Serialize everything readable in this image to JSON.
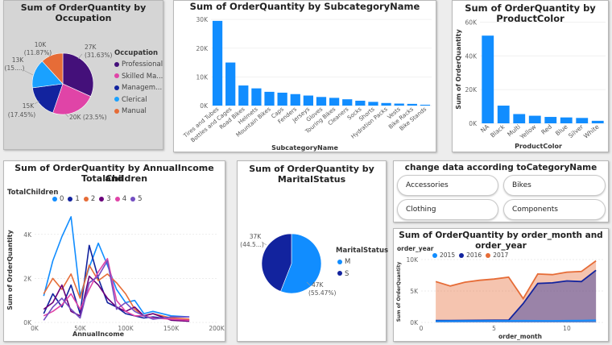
{
  "colors": {
    "bar": "#118dff",
    "professional": "#44107a",
    "skilled": "#e044a7",
    "management": "#12239e",
    "clerical": "#1aa1ff",
    "manual": "#e66c37",
    "marital_m": "#118dff",
    "marital_s": "#12239e",
    "y2015": "#118dff",
    "y2016": "#12239e",
    "y2017": "#e66c37"
  },
  "occupation": {
    "title": "Sum of OrderQuantity by Occupation",
    "legend_title": "Occupation",
    "legend": [
      "Professional",
      "Skilled Ma...",
      "Managem...",
      "Clerical",
      "Manual"
    ],
    "labels": {
      "professional": [
        "27K",
        "(31.63%)"
      ],
      "skilled": [
        "20K (23.5%)",
        ""
      ],
      "management": [
        "15K",
        "(17.45%)"
      ],
      "clerical": [
        "13K",
        "(15....)"
      ],
      "manual": [
        "10K",
        "(11.87%)"
      ]
    }
  },
  "subcategory": {
    "title": "Sum of OrderQuantity by SubcategoryName",
    "xlabel": "SubcategoryName",
    "yticks": [
      "0K",
      "10K",
      "20K",
      "30K"
    ]
  },
  "color": {
    "title": "Sum of OrderQuantity by ProductColor",
    "xlabel": "ProductColor",
    "ylabel": "Sum of OrderQuantity",
    "yticks": [
      "0K",
      "20K",
      "40K",
      "60K"
    ]
  },
  "income": {
    "title_line1": "Sum of OrderQuantity by AnnualIncome and",
    "title_line2": "TotalChildren",
    "legend_title": "TotalChildren",
    "legend": [
      "0",
      "1",
      "2",
      "3",
      "4",
      "5"
    ],
    "xlabel": "AnnualIncome",
    "ylabel": "Sum of OrderQuantity",
    "xticks": [
      "0K",
      "50K",
      "100K",
      "150K",
      "200K"
    ],
    "yticks": [
      "0K",
      "2K",
      "4K"
    ]
  },
  "marital": {
    "title_line1": "Sum of OrderQuantity by",
    "title_line2": "MaritalStatus",
    "legend_title": "MaritalStatus",
    "legend": [
      "M",
      "S"
    ],
    "label_s": [
      "37K",
      "(44.5...)"
    ],
    "label_m": [
      "47K",
      "(55.47%)"
    ]
  },
  "slicer": {
    "title": "change data according toCategoryName",
    "buttons": [
      "Accessories",
      "Bikes",
      "Clothing",
      "Components"
    ]
  },
  "month": {
    "title": "Sum of OrderQuantity by order_month and order_year",
    "legend_title": "order_year",
    "legend": [
      "2015",
      "2016",
      "2017"
    ],
    "xlabel": "order_month",
    "ylabel": "Sum of OrderQuantity",
    "xticks": [
      "0",
      "5",
      "10"
    ],
    "yticks": [
      "0K",
      "5K",
      "10K"
    ]
  },
  "chart_data": [
    {
      "type": "pie",
      "title": "Sum of OrderQuantity by Occupation",
      "categories": [
        "Professional",
        "Skilled Manual",
        "Management",
        "Clerical",
        "Manual"
      ],
      "values": [
        27000,
        20000,
        15000,
        13000,
        10000
      ],
      "percent": [
        31.63,
        23.5,
        17.45,
        15.5,
        11.87
      ]
    },
    {
      "type": "bar",
      "title": "Sum of OrderQuantity by SubcategoryName",
      "xlabel": "SubcategoryName",
      "ylabel": "",
      "ylim": [
        0,
        32000
      ],
      "categories": [
        "Tires and Tubes",
        "Bottles and Cages",
        "Road Bikes",
        "Helmets",
        "Mountain Bikes",
        "Caps",
        "Fenders",
        "Jerseys",
        "Gloves",
        "Touring Bikes",
        "Cleaners",
        "Socks",
        "Shorts",
        "Hydration Packs",
        "Vests",
        "Bike Racks",
        "Bike Stands"
      ],
      "values": [
        29500,
        15000,
        7000,
        6000,
        4800,
        4500,
        4000,
        3500,
        3000,
        2700,
        2200,
        1700,
        1300,
        900,
        700,
        600,
        300
      ]
    },
    {
      "type": "bar",
      "title": "Sum of OrderQuantity by ProductColor",
      "xlabel": "ProductColor",
      "ylabel": "Sum of OrderQuantity",
      "ylim": [
        0,
        65000
      ],
      "categories": [
        "NA",
        "Black",
        "Multi",
        "Yellow",
        "Red",
        "Blue",
        "Silver",
        "White"
      ],
      "values": [
        52000,
        10500,
        5500,
        4500,
        3800,
        3500,
        3200,
        1500
      ]
    },
    {
      "type": "line",
      "title": "Sum of OrderQuantity by AnnualIncome and TotalChildren",
      "xlabel": "AnnualIncome",
      "ylabel": "Sum of OrderQuantity",
      "xlim": [
        0,
        200000
      ],
      "ylim": [
        0,
        5200
      ],
      "x": [
        10000,
        20000,
        30000,
        40000,
        50000,
        60000,
        70000,
        80000,
        90000,
        100000,
        110000,
        120000,
        130000,
        150000,
        170000
      ],
      "series": [
        {
          "name": "0",
          "values": [
            1200,
            2800,
            3900,
            4800,
            1200,
            2500,
            3600,
            2600,
            1500,
            900,
            1000,
            400,
            500,
            300,
            250
          ]
        },
        {
          "name": "1",
          "values": [
            400,
            1300,
            700,
            1700,
            400,
            3500,
            2000,
            900,
            700,
            400,
            300,
            200,
            250,
            150,
            100
          ]
        },
        {
          "name": "2",
          "values": [
            1300,
            2000,
            1500,
            2200,
            1100,
            2600,
            1900,
            2200,
            1800,
            1300,
            600,
            300,
            400,
            200,
            150
          ]
        },
        {
          "name": "3",
          "values": [
            600,
            900,
            1700,
            500,
            300,
            2100,
            1700,
            1100,
            700,
            500,
            700,
            300,
            400,
            100,
            50
          ]
        },
        {
          "name": "4",
          "values": [
            300,
            500,
            800,
            1300,
            600,
            1500,
            2300,
            2900,
            1000,
            500,
            300,
            300,
            200,
            150,
            100
          ]
        },
        {
          "name": "5",
          "values": [
            100,
            700,
            1100,
            600,
            200,
            1800,
            2100,
            2800,
            600,
            900,
            500,
            300,
            150,
            250,
            250
          ]
        }
      ]
    },
    {
      "type": "pie",
      "title": "Sum of OrderQuantity by MaritalStatus",
      "categories": [
        "M",
        "S"
      ],
      "values": [
        47000,
        37000
      ],
      "percent": [
        55.47,
        44.53
      ]
    },
    {
      "type": "area",
      "title": "Sum of OrderQuantity by order_month and order_year",
      "xlabel": "order_month",
      "ylabel": "Sum of OrderQuantity",
      "xlim": [
        0,
        12.6
      ],
      "ylim": [
        0,
        10000
      ],
      "x": [
        1,
        2,
        3,
        4,
        5,
        6,
        7,
        8,
        9,
        10,
        11,
        12
      ],
      "series": [
        {
          "name": "2015",
          "values": [
            200,
            220,
            230,
            240,
            250,
            260,
            280,
            270,
            260,
            280,
            300,
            350
          ]
        },
        {
          "name": "2016",
          "values": [
            300,
            300,
            320,
            330,
            340,
            350,
            3000,
            6200,
            6300,
            6600,
            6500,
            8300
          ]
        },
        {
          "name": "2017",
          "values": [
            6500,
            5800,
            6400,
            6700,
            6900,
            7200,
            3800,
            7700,
            7600,
            8000,
            8100,
            9800
          ]
        }
      ]
    }
  ]
}
